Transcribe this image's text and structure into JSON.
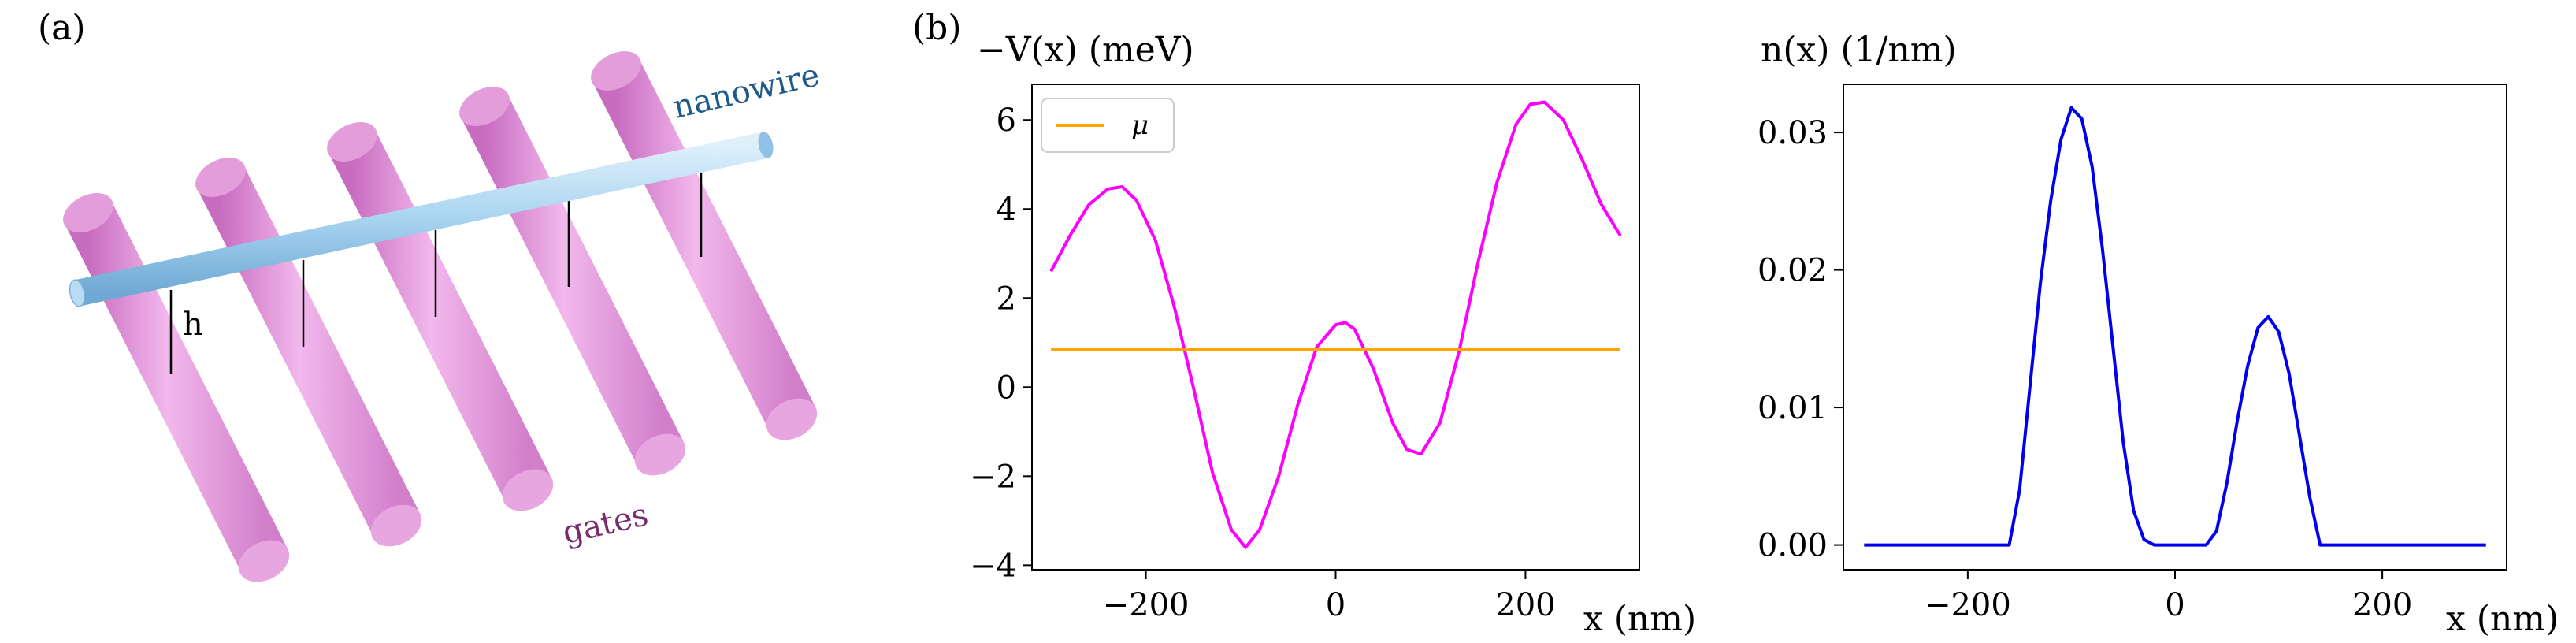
{
  "panels": {
    "a": {
      "label": "(a)",
      "nanowire_label": "nanowire",
      "gates_label": "gates",
      "h_label": "h",
      "colors": {
        "gate": "#e08fd8",
        "nanowire": "#a8d4f0",
        "nanowire_text": "#1f5a8a",
        "gates_text": "#7a2a6e"
      }
    },
    "b": {
      "label": "(b)"
    }
  },
  "chart_data": [
    {
      "type": "line",
      "ylabel": "−V(x) (meV)",
      "xlabel": "x (nm)",
      "xlim": [
        -320,
        320
      ],
      "ylim": [
        -4.1,
        6.8
      ],
      "xticks": [
        -200,
        0,
        200
      ],
      "xtick_labels": [
        "−200",
        "0",
        "200"
      ],
      "yticks": [
        -4,
        -2,
        0,
        2,
        4,
        6
      ],
      "ytick_labels": [
        "−4",
        "−2",
        "0",
        "2",
        "4",
        "6"
      ],
      "grid": false,
      "legend": {
        "placement": "top-left",
        "entries": [
          "μ"
        ]
      },
      "series": [
        {
          "name": "",
          "color": "#ff00ff",
          "x": [
            -300,
            -280,
            -260,
            -240,
            -225,
            -210,
            -190,
            -170,
            -150,
            -130,
            -110,
            -95,
            -80,
            -60,
            -40,
            -20,
            0,
            10,
            20,
            40,
            60,
            75,
            90,
            110,
            130,
            150,
            170,
            190,
            205,
            220,
            240,
            260,
            280,
            300
          ],
          "y": [
            2.6,
            3.4,
            4.1,
            4.45,
            4.5,
            4.2,
            3.3,
            1.8,
            0.0,
            -1.9,
            -3.2,
            -3.6,
            -3.2,
            -2.0,
            -0.4,
            0.9,
            1.4,
            1.45,
            1.3,
            0.4,
            -0.8,
            -1.4,
            -1.5,
            -0.8,
            0.8,
            2.8,
            4.6,
            5.9,
            6.35,
            6.4,
            6.0,
            5.1,
            4.1,
            3.4
          ]
        },
        {
          "name": "μ",
          "color": "#ffa500",
          "x": [
            -300,
            300
          ],
          "y": [
            0.85,
            0.85
          ]
        }
      ]
    },
    {
      "type": "line",
      "ylabel": "n(x) (1/nm)",
      "xlabel": "x (nm)",
      "xlim": [
        -320,
        320
      ],
      "ylim": [
        -0.0018,
        0.0335
      ],
      "xticks": [
        -200,
        0,
        200
      ],
      "xtick_labels": [
        "−200",
        "0",
        "200"
      ],
      "yticks": [
        0,
        0.01,
        0.02,
        0.03
      ],
      "ytick_labels": [
        "0.00",
        "0.01",
        "0.02",
        "0.03"
      ],
      "grid": false,
      "series": [
        {
          "name": "",
          "color": "#0000ee",
          "x": [
            -300,
            -160,
            -150,
            -140,
            -130,
            -120,
            -110,
            -100,
            -90,
            -80,
            -70,
            -60,
            -50,
            -40,
            -30,
            -20,
            30,
            40,
            50,
            60,
            70,
            80,
            90,
            100,
            110,
            120,
            130,
            140,
            300
          ],
          "y": [
            0,
            0,
            0.004,
            0.0115,
            0.019,
            0.025,
            0.0295,
            0.0318,
            0.031,
            0.0275,
            0.0215,
            0.0145,
            0.0075,
            0.0025,
            0.0004,
            0,
            0,
            0.001,
            0.0045,
            0.009,
            0.013,
            0.0158,
            0.0166,
            0.0155,
            0.0125,
            0.008,
            0.0035,
            0,
            0
          ]
        }
      ]
    }
  ]
}
